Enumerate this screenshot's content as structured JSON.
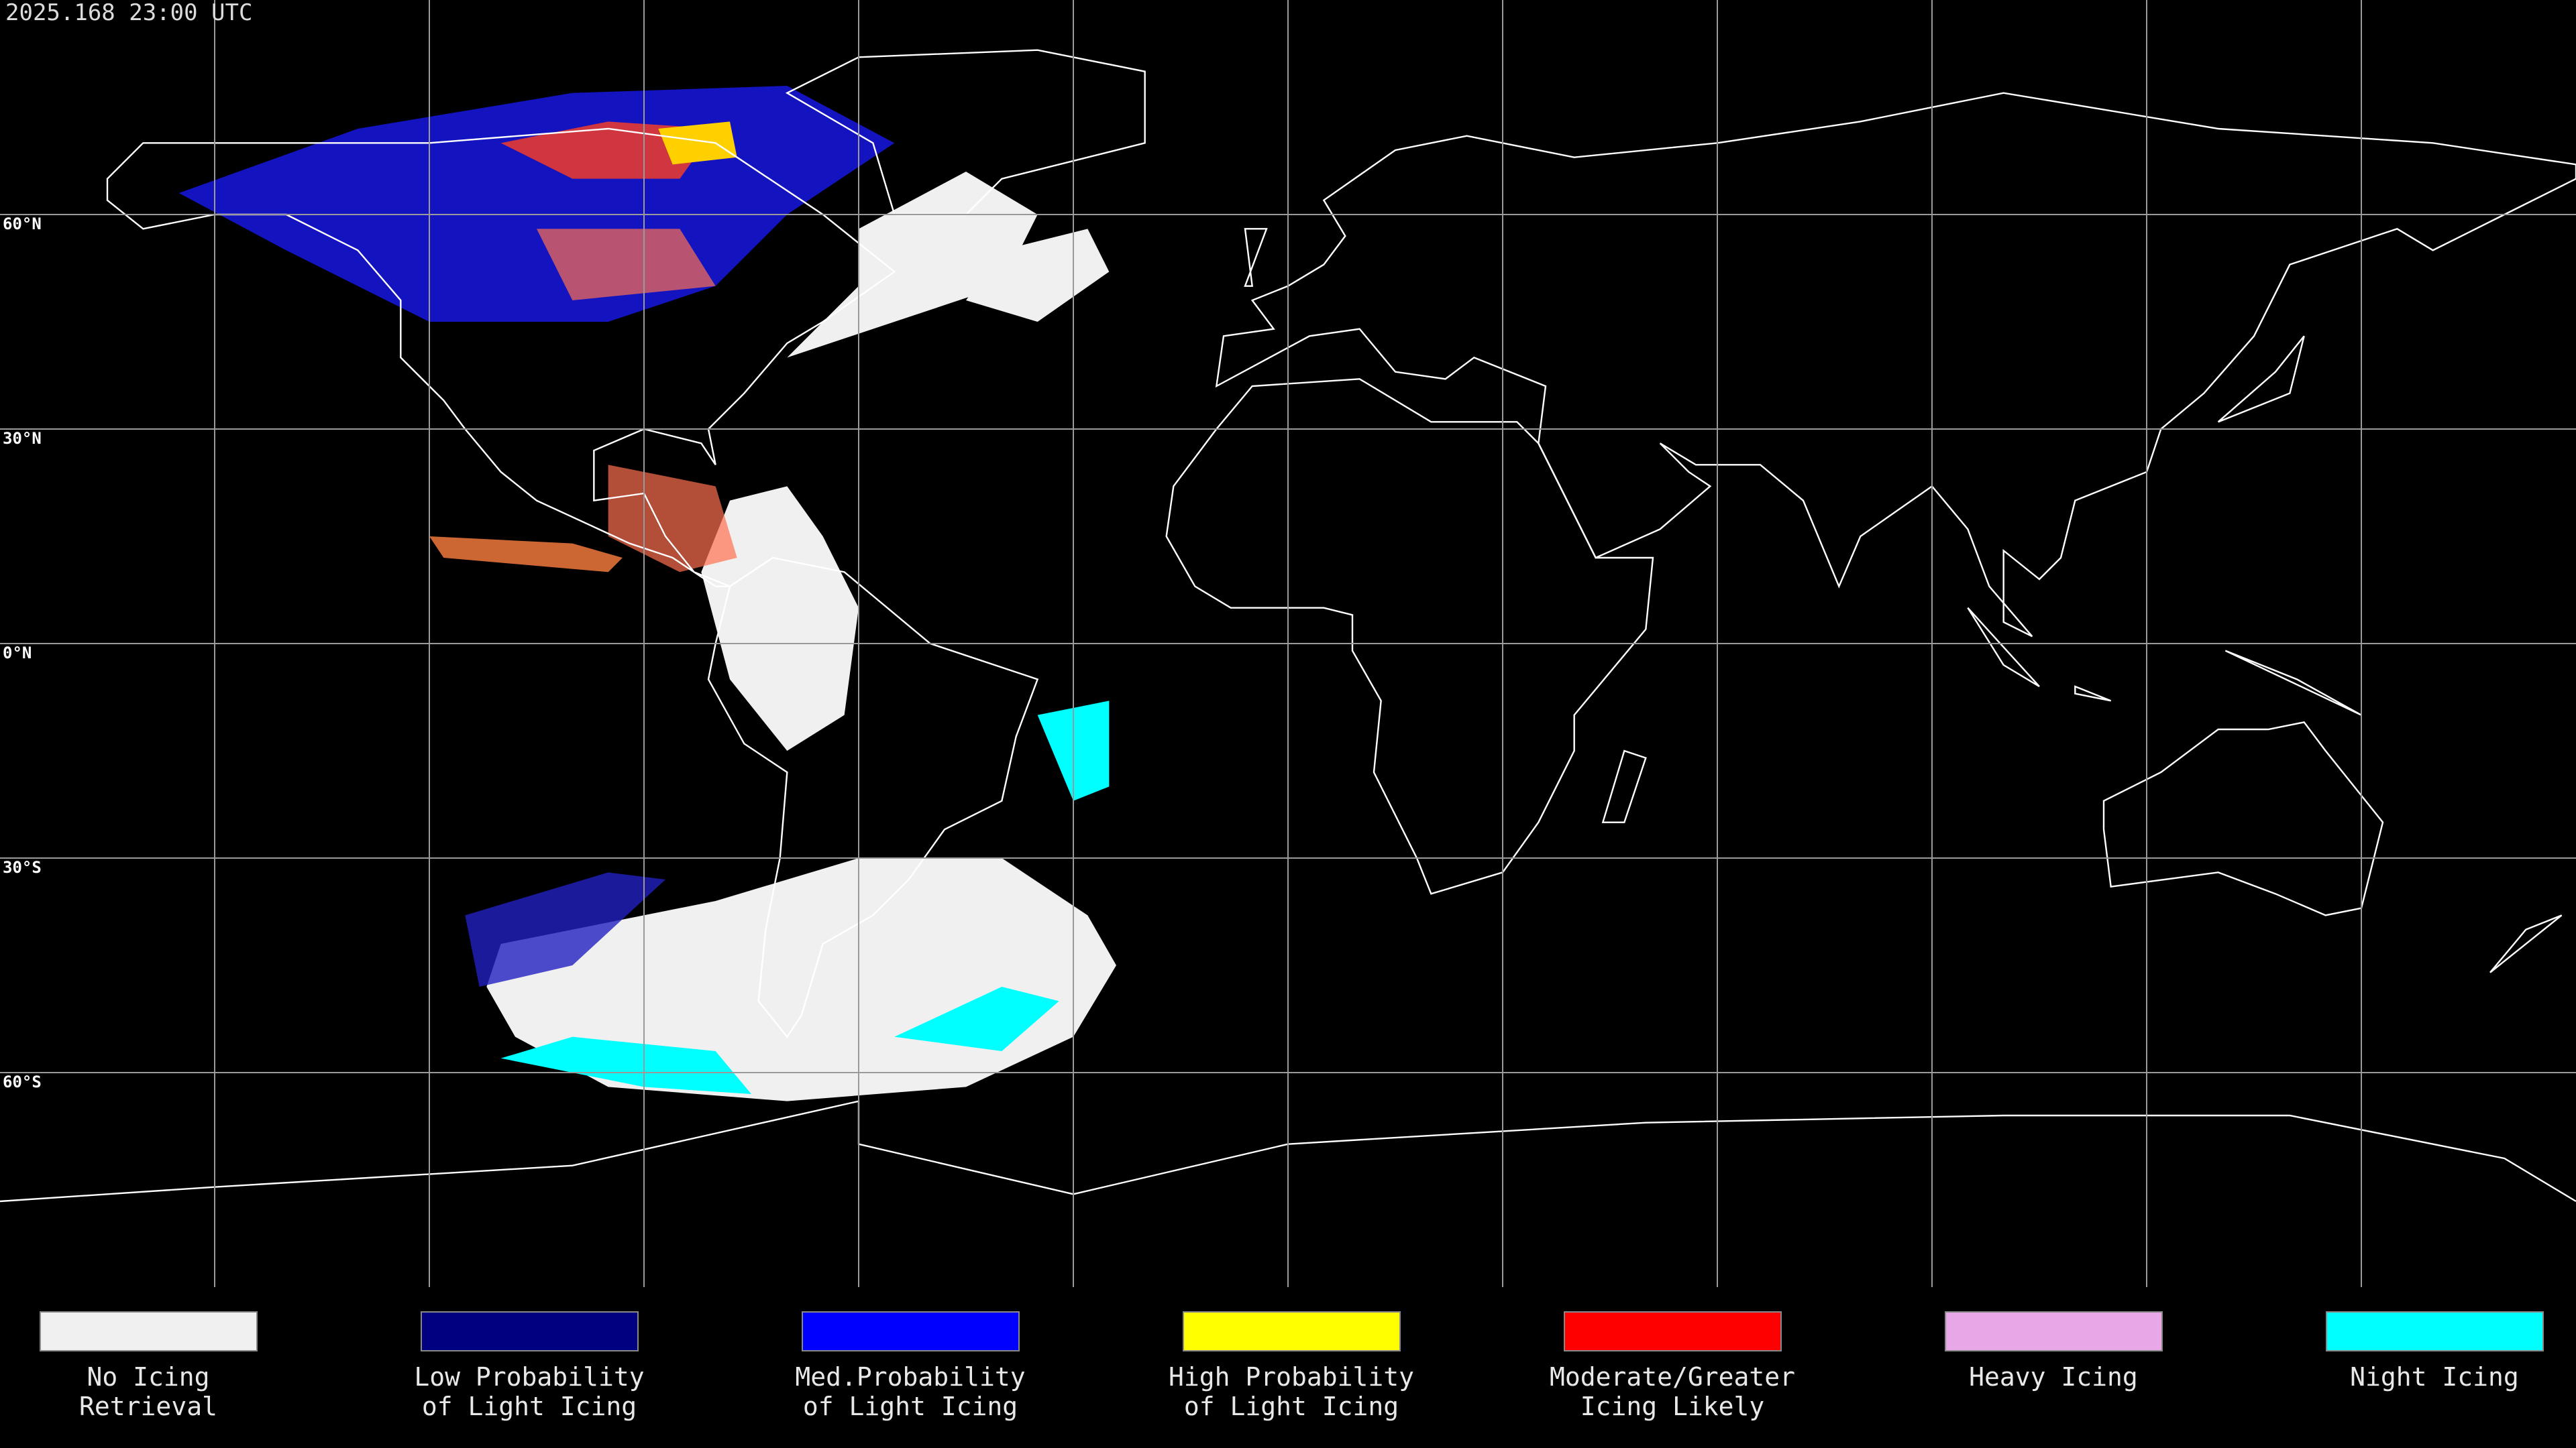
{
  "header": {
    "timestamp": "2025.168 23:00 UTC"
  },
  "map": {
    "lat_labels": [
      "60°N",
      "30°N",
      "0°N",
      "30°S",
      "60°S"
    ]
  },
  "legend": {
    "items": [
      {
        "lines": [
          "No Icing",
          "Retrieval"
        ],
        "color": "#f0f0f0"
      },
      {
        "lines": [
          "Low Probability",
          "of Light Icing"
        ],
        "color": "#000080"
      },
      {
        "lines": [
          "Med.Probability",
          "of Light Icing"
        ],
        "color": "#0000ff"
      },
      {
        "lines": [
          "High Probability",
          "of Light Icing"
        ],
        "color": "#ffff00"
      },
      {
        "lines": [
          "Moderate/Greater",
          "Icing Likely"
        ],
        "color": "#ff0000"
      },
      {
        "lines": [
          "Heavy Icing"
        ],
        "color": "#e8a8e8"
      },
      {
        "lines": [
          "Night Icing"
        ],
        "color": "#00ffff"
      }
    ]
  }
}
